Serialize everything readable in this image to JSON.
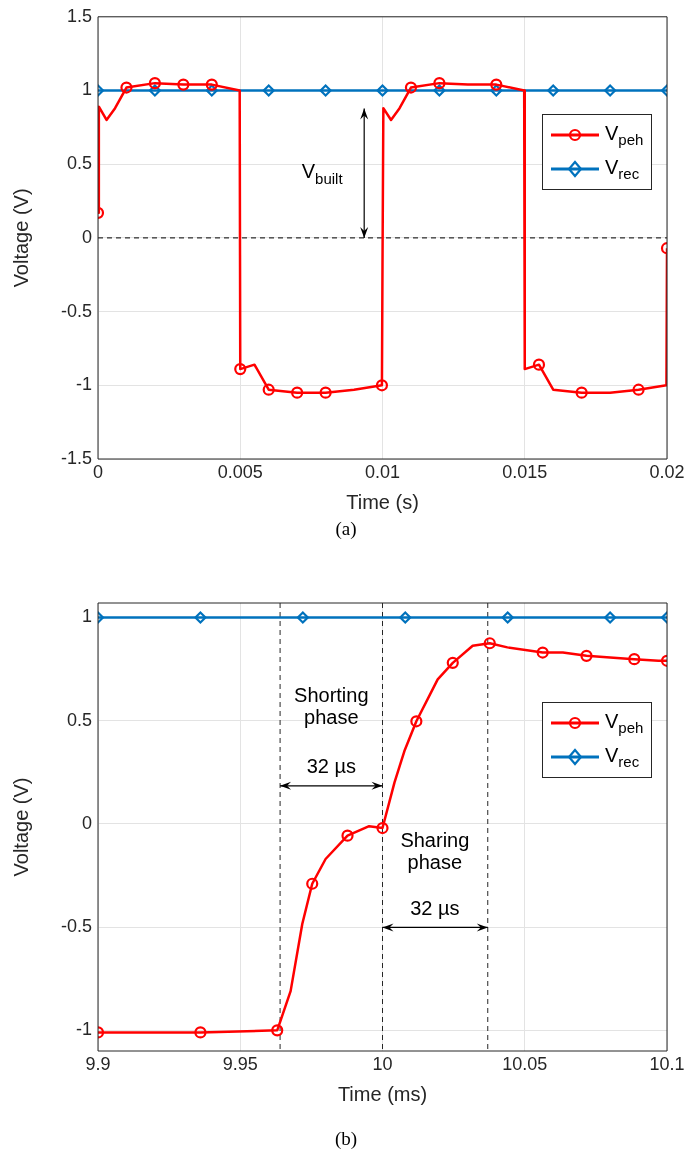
{
  "chart_data": [
    {
      "type": "line",
      "title": "(a)",
      "xlabel": "Time (s)",
      "ylabel": "Voltage (V)",
      "xlim": [
        0,
        0.02
      ],
      "xticks": [
        0,
        0.005,
        0.01,
        0.015,
        0.02
      ],
      "ylim": [
        -1.5,
        1.5
      ],
      "yticks": [
        -1.5,
        -1,
        -0.5,
        0,
        0.5,
        1,
        1.5
      ],
      "grid": true,
      "legend": "top right",
      "series": [
        {
          "name": "V$_{peh}$",
          "color": "#ff0000",
          "marker": "circle",
          "x": [
            0,
            3e-05,
            0.0003,
            0.0006,
            0.001,
            0.002,
            0.003,
            0.004,
            0.00498,
            0.005,
            0.0055,
            0.006,
            0.007,
            0.008,
            0.009,
            0.00998,
            0.01,
            0.01003,
            0.0103,
            0.0106,
            0.011,
            0.012,
            0.013,
            0.014,
            0.01498,
            0.015,
            0.0155,
            0.016,
            0.017,
            0.018,
            0.019,
            0.01998,
            0.02
          ],
          "values": [
            0.17,
            0.89,
            0.8,
            0.88,
            1.02,
            1.05,
            1.04,
            1.04,
            1.0,
            -0.89,
            -0.86,
            -1.03,
            -1.05,
            -1.05,
            -1.03,
            -1.0,
            -0.18,
            0.88,
            0.8,
            0.88,
            1.02,
            1.05,
            1.04,
            1.04,
            1.0,
            -0.89,
            -0.86,
            -1.03,
            -1.05,
            -1.05,
            -1.03,
            -1.0,
            -0.07
          ]
        },
        {
          "name": "V$_{rec}$",
          "color": "#0072bd",
          "marker": "diamond",
          "x": [
            0,
            0.002,
            0.004,
            0.006,
            0.008,
            0.01,
            0.012,
            0.014,
            0.016,
            0.018,
            0.02
          ],
          "values": [
            1,
            1,
            1,
            1,
            1,
            1,
            1,
            1,
            1,
            1,
            1
          ]
        }
      ],
      "ref_lines": [
        {
          "axis": "y",
          "value": 0,
          "color": "#000000",
          "line_style": "dashed"
        }
      ],
      "annotations": [
        "V$_{built}$"
      ]
    },
    {
      "type": "line",
      "title": "(b)",
      "xlabel": "Time (ms)",
      "ylabel": "Voltage (V)",
      "xlim": [
        9.9,
        10.1
      ],
      "xticks": [
        9.9,
        9.95,
        10,
        10.05,
        10.1
      ],
      "ylim": [
        -1.1,
        1.07
      ],
      "yticks": [
        -1,
        -0.5,
        0,
        0.5,
        1
      ],
      "grid": true,
      "legend": "top right",
      "series": [
        {
          "name": "V$_{peh}$",
          "color": "#ff0000",
          "marker": "circle",
          "x": [
            9.9,
            9.936,
            9.963,
            9.9677,
            9.9718,
            9.9753,
            9.98,
            9.9877,
            9.9953,
            10.0,
            10.0042,
            10.0077,
            10.0119,
            10.0194,
            10.0247,
            10.0317,
            10.0377,
            10.0439,
            10.0563,
            10.0634,
            10.0717,
            10.08,
            10.0885,
            10.097,
            10.1
          ],
          "values": [
            -1.01,
            -1.01,
            -1.0,
            -0.81,
            -0.485,
            -0.29,
            -0.17,
            -0.057,
            -0.011,
            -0.02,
            0.2,
            0.353,
            0.497,
            0.7,
            0.78,
            0.863,
            0.875,
            0.855,
            0.83,
            0.83,
            0.814,
            0.806,
            0.798,
            0.79,
            0.79
          ]
        },
        {
          "name": "V$_{rec}$",
          "color": "#0072bd",
          "marker": "diamond",
          "x": [
            9.9,
            9.936,
            9.972,
            10.008,
            10.044,
            10.08,
            10.1
          ],
          "values": [
            1,
            1,
            1,
            1,
            1,
            1,
            1
          ]
        }
      ],
      "ref_lines": [
        {
          "axis": "x",
          "value": 9.964,
          "color": "#262626",
          "line_style": "dashed"
        },
        {
          "axis": "x",
          "value": 10.0,
          "color": "#262626",
          "line_style": "dashed"
        },
        {
          "axis": "x",
          "value": 10.037,
          "color": "#262626",
          "line_style": "dashed"
        }
      ],
      "annotations": [
        "Shorting phase",
        "32 µs",
        "Sharing phase",
        "32 µs"
      ]
    }
  ]
}
